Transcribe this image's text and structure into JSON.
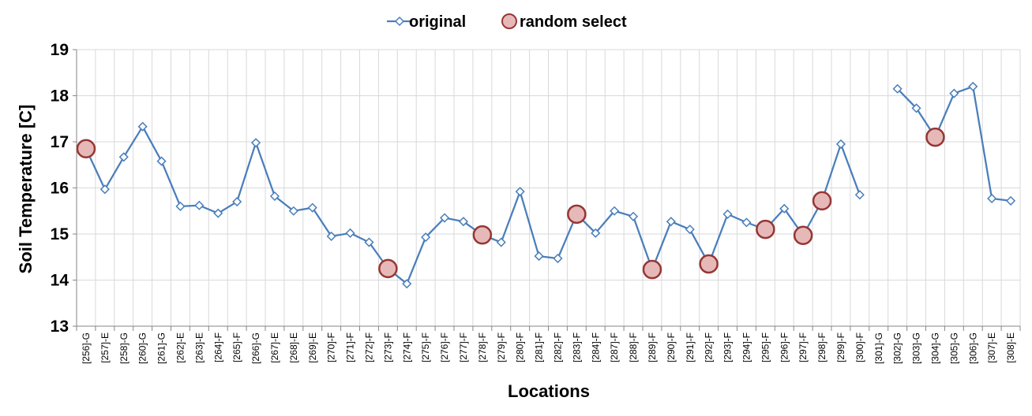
{
  "chart_data": {
    "type": "line",
    "xlabel": "Locations",
    "ylabel": "Soil Temperature [C]",
    "ylim": [
      13,
      19
    ],
    "yticks": [
      "13",
      "14",
      "15",
      "16",
      "17",
      "18",
      "19"
    ],
    "grid": true,
    "legend_position": "top-center",
    "categories": [
      "[256]-G",
      "[257]-E",
      "[258]-G",
      "[260]-G",
      "[261]-G",
      "[262]-E",
      "[263]-E",
      "[264]-F",
      "[265]-F",
      "[266]-G",
      "[267]-E",
      "[268]-E",
      "[269]-E",
      "[270]-F",
      "[271]-F",
      "[272]-F",
      "[273]-F",
      "[274]-F",
      "[275]-F",
      "[276]-F",
      "[277]-F",
      "[278]-F",
      "[279]-F",
      "[280]-F",
      "[281]-F",
      "[282]-F",
      "[283]-F",
      "[284]-F",
      "[287]-F",
      "[288]-F",
      "[289]-F",
      "[290]-F",
      "[291]-F",
      "[292]-F",
      "[293]-F",
      "[294]-F",
      "[295]-F",
      "[296]-F",
      "[297]-F",
      "[298]-F",
      "[299]-F",
      "[300]-F",
      "[301]-G",
      "[302]-G",
      "[303]-G",
      "[304]-G",
      "[305]-G",
      "[306]-G",
      "[307]-E",
      "[308]-E"
    ],
    "series": [
      {
        "name": "original",
        "color": "#4a7ebb",
        "marker": "diamond",
        "values": [
          16.85,
          15.97,
          16.67,
          17.33,
          16.58,
          15.6,
          15.62,
          15.45,
          15.7,
          16.98,
          15.82,
          15.5,
          15.57,
          14.95,
          15.02,
          14.82,
          14.25,
          13.92,
          14.93,
          15.35,
          15.27,
          14.98,
          14.82,
          15.92,
          14.52,
          14.47,
          15.43,
          15.02,
          15.5,
          15.38,
          14.23,
          15.27,
          15.1,
          14.35,
          15.43,
          15.25,
          15.1,
          15.55,
          14.97,
          15.72,
          16.95,
          15.85,
          null,
          18.15,
          17.73,
          17.1,
          18.05,
          18.2,
          15.77,
          15.72
        ]
      },
      {
        "name": "random select",
        "color": "#e6b9b8",
        "stroke": "#953735",
        "marker": "circle",
        "values": [
          16.85,
          null,
          null,
          null,
          null,
          null,
          null,
          null,
          null,
          null,
          null,
          null,
          null,
          null,
          null,
          null,
          14.25,
          null,
          null,
          null,
          null,
          14.98,
          null,
          null,
          null,
          null,
          15.43,
          null,
          null,
          null,
          14.23,
          null,
          null,
          14.35,
          null,
          null,
          15.1,
          null,
          14.97,
          15.72,
          null,
          null,
          null,
          null,
          null,
          17.1,
          null,
          null,
          null,
          null
        ]
      }
    ]
  }
}
